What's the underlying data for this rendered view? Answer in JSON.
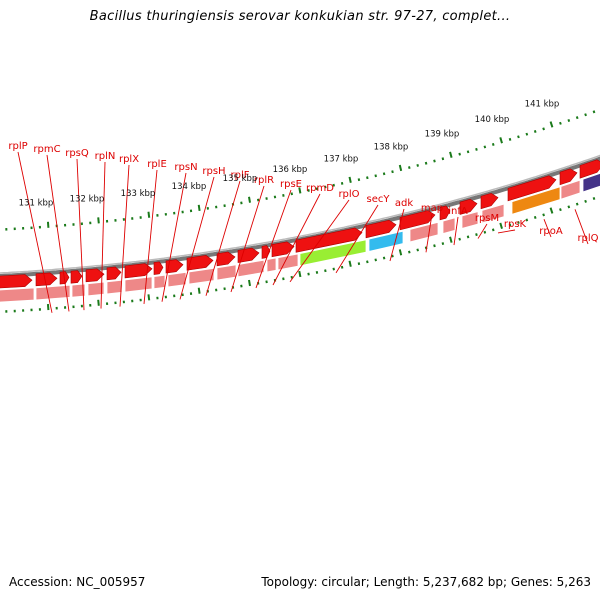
{
  "title": "Bacillus thuringiensis serovar konkukian str. 97-27, complet...",
  "accession_text": "Accession: NC_005957",
  "topology_text": "Topology: circular; Length: 5,237,682 bp; Genes: 5,263",
  "colors": {
    "forward_cds": "#ee1111",
    "gene_feature": "#ee8888",
    "gc_skew_ticks": "#1a7a1a",
    "backbone": "#777777",
    "gene_label": "#dd0000",
    "secY": "#99ee33",
    "adk": "#33bbee",
    "rpoA": "#ee8811",
    "rplQ": "#443388"
  },
  "scale_labels": [
    "131 kbp",
    "132 kbp",
    "133 kbp",
    "134 kbp",
    "135 kbp",
    "136 kbp",
    "137 kbp",
    "138 kbp",
    "139 kbp",
    "140 kbp",
    "141 kbp"
  ],
  "gene_labels": [
    "rplP",
    "rpmC",
    "rpsQ",
    "rplN",
    "rplX",
    "rplE",
    "rpsN",
    "rpsH",
    "rplF",
    "rplR",
    "rpsE",
    "rpmD",
    "rplO",
    "secY",
    "adk",
    "map",
    "infA",
    "rpsM",
    "rpsK",
    "rpoA",
    "rplQ"
  ]
}
